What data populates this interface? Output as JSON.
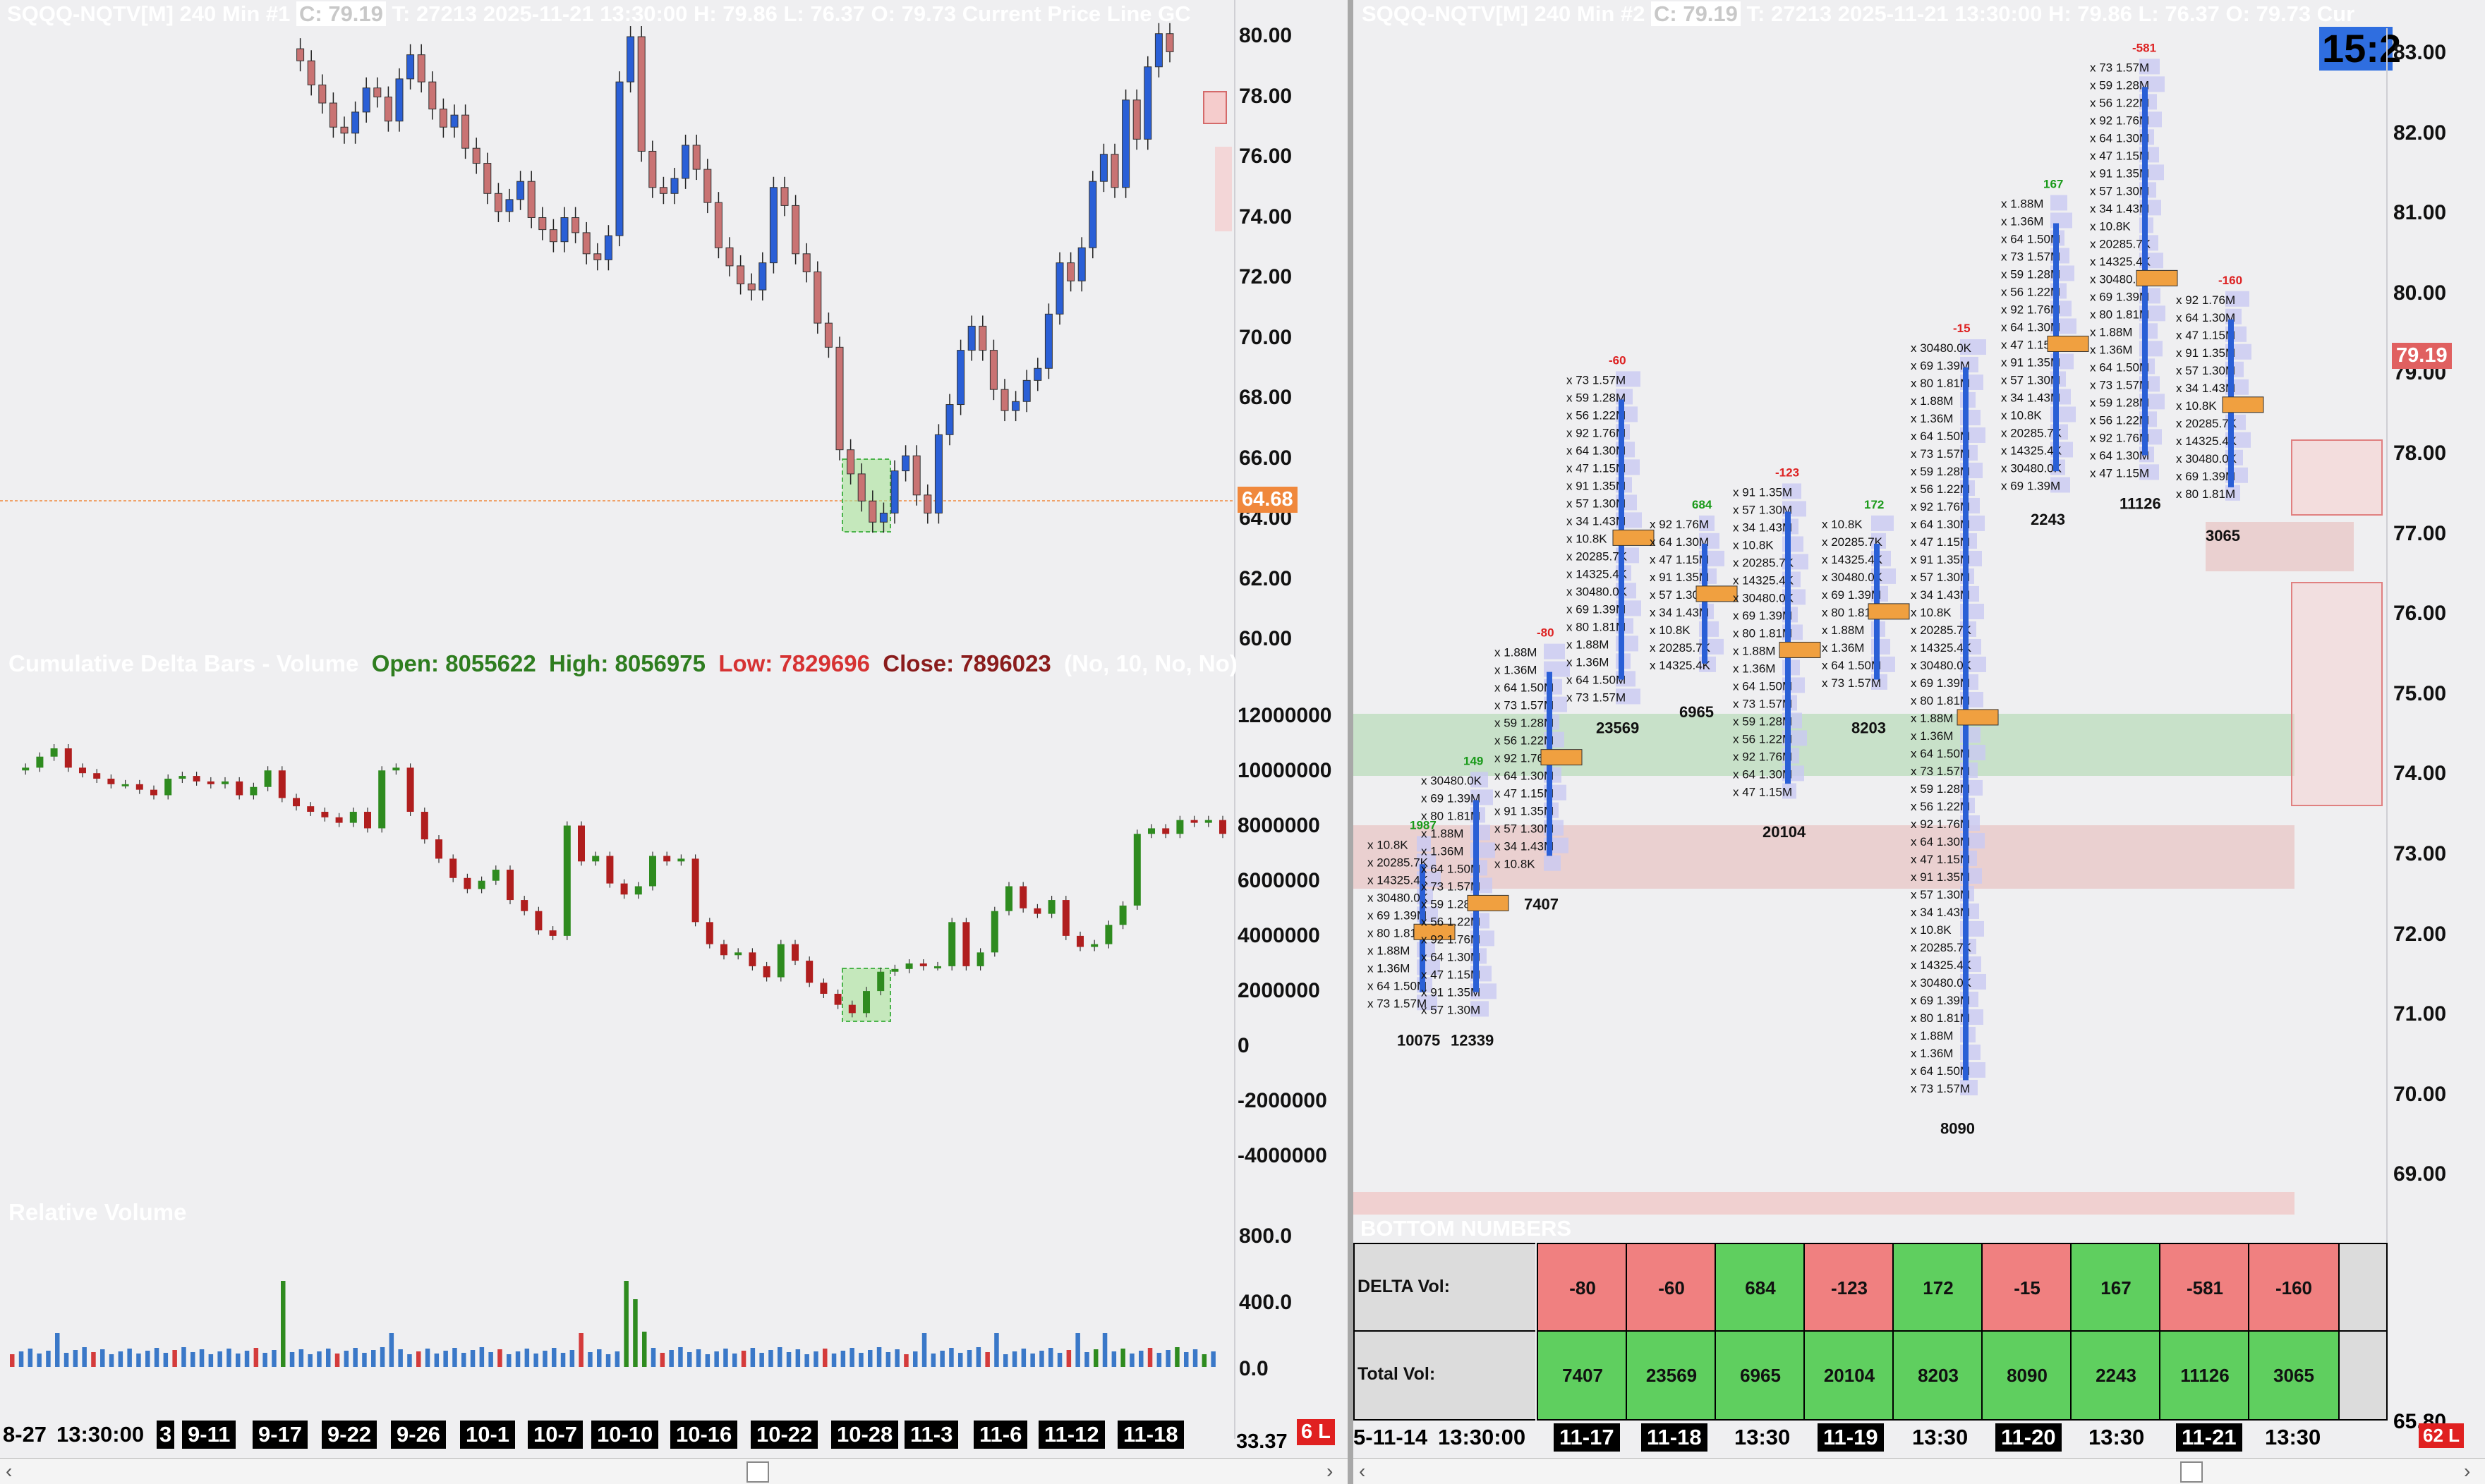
{
  "left_chart": {
    "header": {
      "symbol": "SQQQ-NQTV[M]",
      "interval": "240 Min",
      "chart_no": "#1",
      "close_label": "C: 79.19",
      "details": "T: 27213 2025-11-21 13:30:00 H: 79.86 L: 76.37 O: 79.73 Current Price Line",
      "trail": "GC"
    },
    "price_axis": [
      "80.00",
      "78.00",
      "76.00",
      "74.00",
      "72.00",
      "70.00",
      "68.00",
      "66.00",
      "64.00",
      "62.00",
      "60.00"
    ],
    "price_marker": "64.68",
    "cumdelta_header": {
      "title": "Cumulative Delta Bars - Volume",
      "open": "Open: 8055622",
      "high": "High: 8056975",
      "low": "Low: 7829696",
      "close": "Close: 7896023",
      "params": "(No, 10, No, No)"
    },
    "cumdelta_axis": [
      "12000000",
      "10000000",
      "8000000",
      "6000000",
      "4000000",
      "2000000",
      "0",
      "-2000000",
      "-4000000"
    ],
    "relvol_title": "Relative Volume",
    "relvol_axis": [
      "800.0",
      "400.0",
      "0.0"
    ],
    "x_axis": {
      "start_label": "8-27",
      "time_label": "13:30:00",
      "partial": "3",
      "dates": [
        "9-11",
        "9-17",
        "9-22",
        "9-26",
        "10-1",
        "10-7",
        "10-10",
        "10-16",
        "10-22",
        "10-28",
        "11-3",
        "11-6",
        "11-12",
        "11-18"
      ],
      "corner_value": "33.37",
      "corner_badge": "6 L"
    },
    "colors": {
      "up": "#2a5fd6",
      "down": "#c97373",
      "delta_up": "#2e8b1f",
      "delta_down": "#b01e1e",
      "marker": "#f0883c"
    }
  },
  "right_chart": {
    "header": {
      "symbol": "SQQQ-NQTV[M]",
      "interval": "240 Min",
      "chart_no": "#2",
      "close_label": "C: 79.19",
      "details": "T: 27213 2025-11-21 13:30:00 H: 79.86 L: 76.37 O: 79.73 Cur"
    },
    "clock": "15:2",
    "price_axis": [
      "83.00",
      "82.00",
      "81.00",
      "80.00",
      "79.00",
      "78.00",
      "77.00",
      "76.00",
      "75.00",
      "74.00",
      "73.00",
      "72.00",
      "71.00",
      "70.00",
      "69.00"
    ],
    "price_marker": "79.19",
    "bottom_value": "65.80",
    "bars": [
      {
        "delta": "1987",
        "total": "10075"
      },
      {
        "delta": "149",
        "total": "12339"
      },
      {
        "delta": "-80",
        "total": "7407"
      },
      {
        "delta": "-60",
        "total": "23569"
      },
      {
        "delta": "684",
        "total": "6965"
      },
      {
        "delta": "-123",
        "total": "20104"
      },
      {
        "delta": "172",
        "total": "8203"
      },
      {
        "delta": "-15",
        "total": "8090"
      },
      {
        "delta": "167",
        "total": "2243"
      },
      {
        "delta": "-581",
        "total": "11126"
      },
      {
        "delta": "-160",
        "total": "3065"
      }
    ],
    "bottom_numbers": {
      "title": "BOTTOM NUMBERS",
      "delta_label": "DELTA Vol:",
      "total_label": "Total Vol:",
      "delta": [
        "-80",
        "-60",
        "684",
        "-123",
        "172",
        "-15",
        "167",
        "-581",
        "-160"
      ],
      "total": [
        "7407",
        "23569",
        "6965",
        "20104",
        "8203",
        "8090",
        "2243",
        "11126",
        "3065"
      ]
    },
    "x_axis": {
      "start_label": "5-11-14",
      "time_label": "13:30:00",
      "ticks": [
        "11-17",
        "11-18",
        "13:30",
        "11-19",
        "13:30",
        "11-20",
        "13:30",
        "11-21",
        "13:30"
      ],
      "corner_badge": "62 L"
    },
    "footprint_samples": [
      "x 10.8K",
      "x 20285.7K",
      "x 14325.4K",
      "x 30480.0K",
      "x 69 1.39M",
      "x 80 1.81M",
      "x 1.88M",
      "x 1.36M",
      "x 64 1.50M",
      "x 73 1.57M",
      "x 59 1.28M",
      "x 56 1.22M",
      "x 92 1.76M",
      "x 64 1.30M",
      "x 47 1.15M",
      "x 91 1.35M",
      "x 57 1.30M",
      "x 34 1.43M"
    ]
  }
}
